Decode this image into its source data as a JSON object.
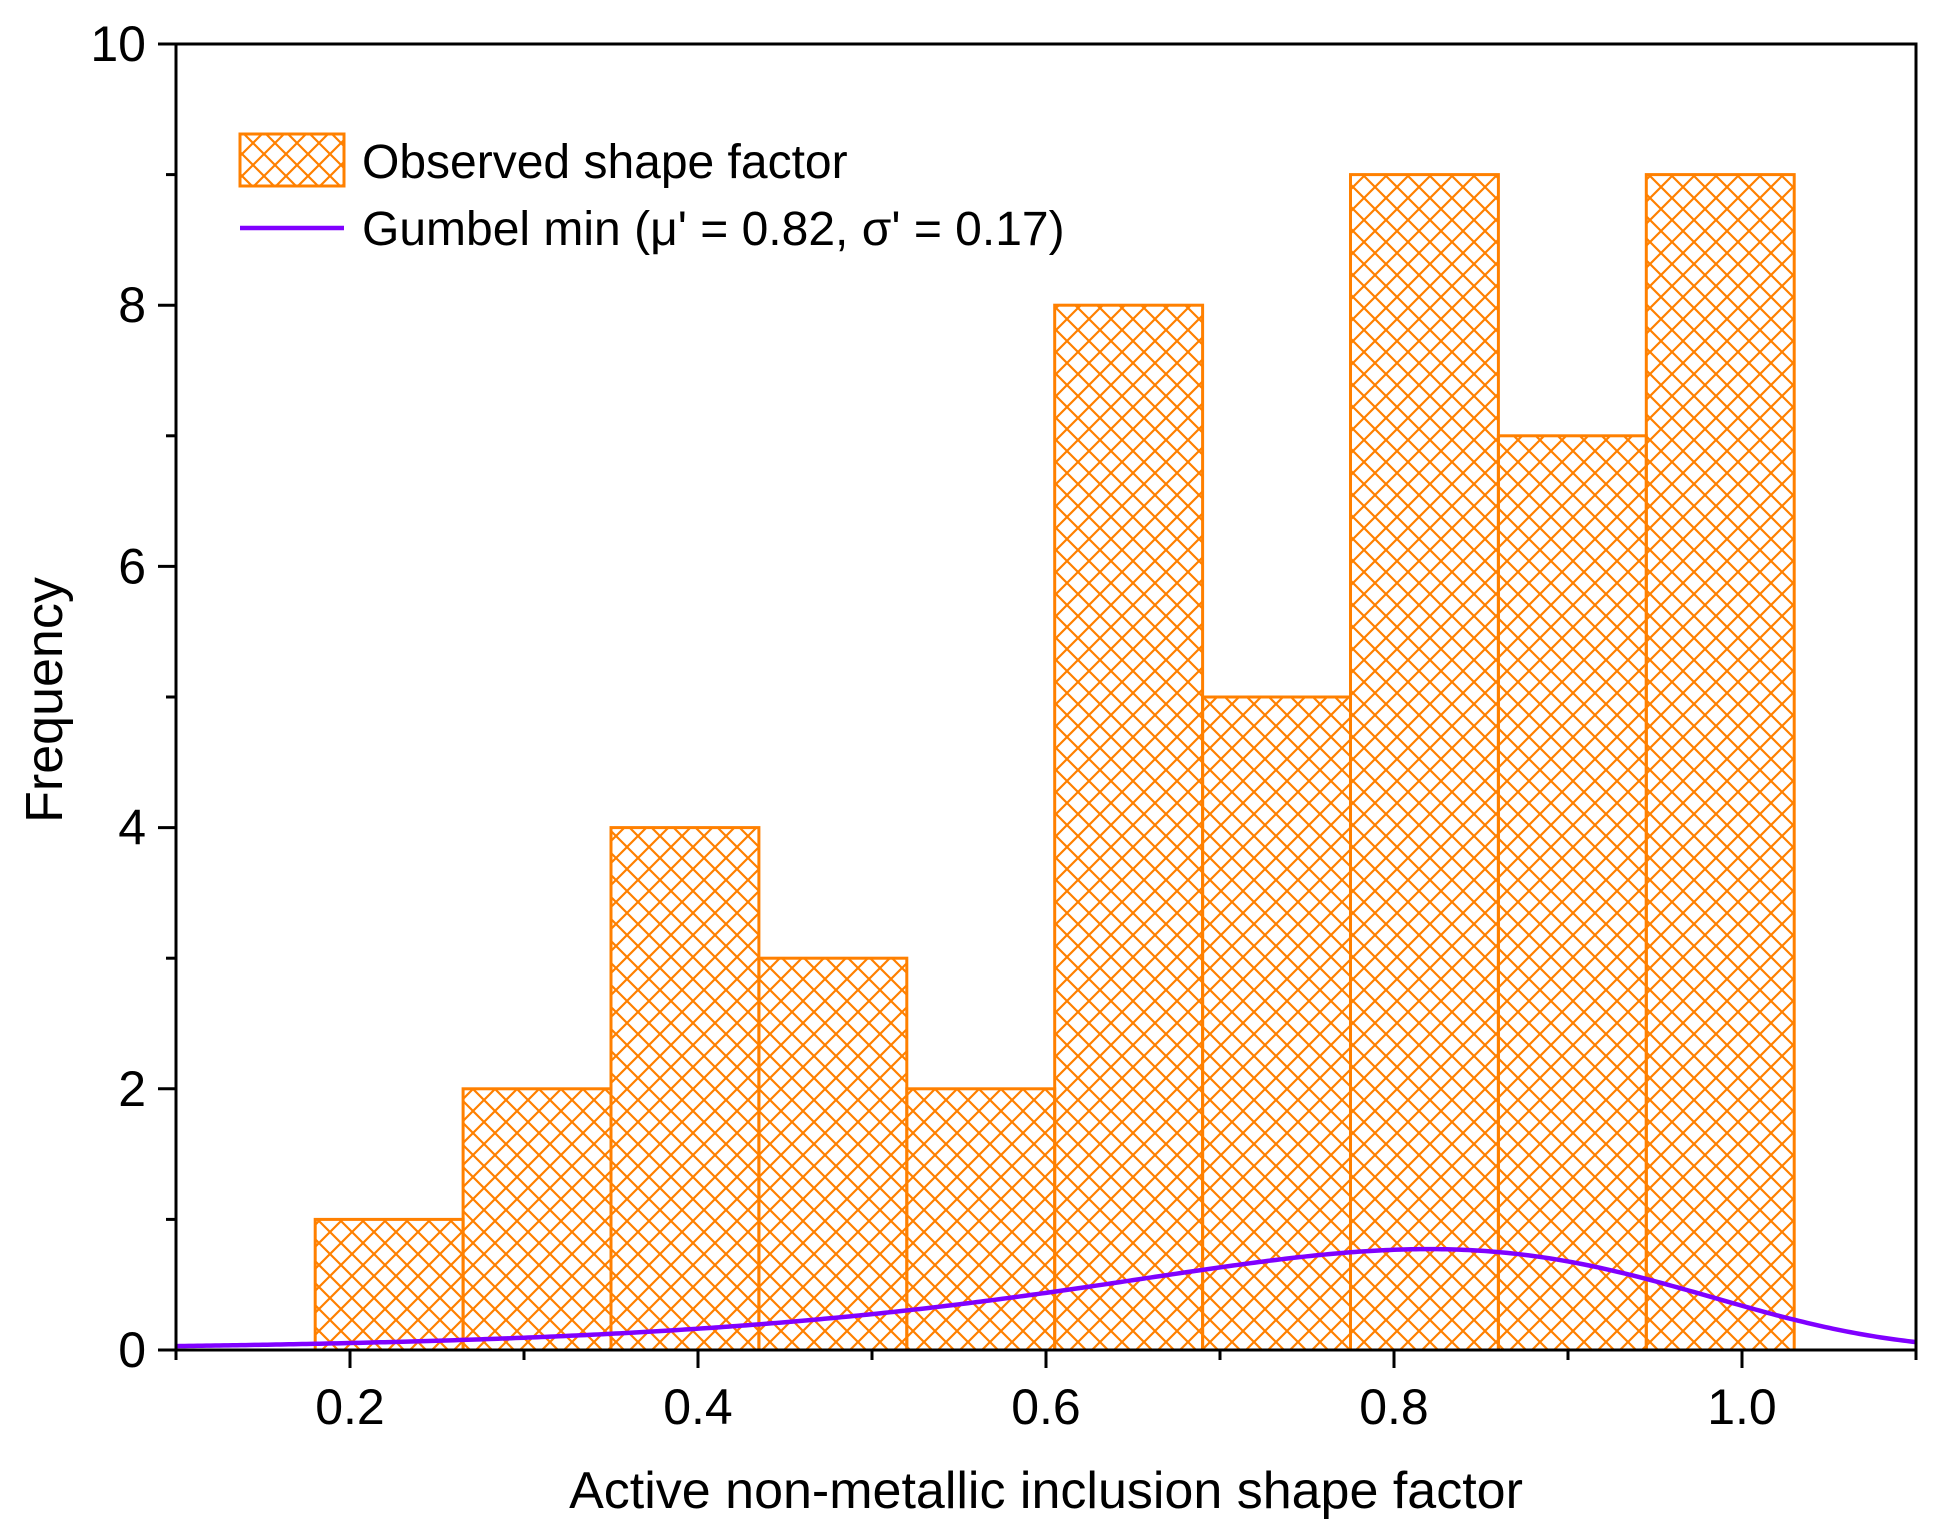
{
  "chart_data": {
    "type": "bar",
    "title": "",
    "xlabel": "Active non-metallic inclusion shape factor",
    "ylabel": "Frequency",
    "xlim": [
      0.1,
      1.1
    ],
    "ylim": [
      0,
      10
    ],
    "x_ticks": [
      "0.2",
      "0.4",
      "0.6",
      "0.8",
      "1.0"
    ],
    "y_ticks": [
      "0",
      "2",
      "4",
      "6",
      "8",
      "10"
    ],
    "bins": [
      {
        "start": 0.18,
        "end": 0.265,
        "value": 1
      },
      {
        "start": 0.265,
        "end": 0.35,
        "value": 2
      },
      {
        "start": 0.35,
        "end": 0.435,
        "value": 4
      },
      {
        "start": 0.435,
        "end": 0.52,
        "value": 3
      },
      {
        "start": 0.52,
        "end": 0.605,
        "value": 2
      },
      {
        "start": 0.605,
        "end": 0.69,
        "value": 8
      },
      {
        "start": 0.69,
        "end": 0.775,
        "value": 5
      },
      {
        "start": 0.775,
        "end": 0.86,
        "value": 9
      },
      {
        "start": 0.86,
        "end": 0.945,
        "value": 7
      },
      {
        "start": 0.945,
        "end": 1.03,
        "value": 9
      }
    ],
    "curve": {
      "name": "Gumbel min (μ' = 0.82, σ' = 0.17)",
      "type": "gumbel_min",
      "mu": 0.82,
      "sigma": 0.17,
      "scale": 4.2,
      "x_range": [
        0.1,
        1.1
      ]
    },
    "legend": {
      "position": "top-left",
      "entries": [
        "Observed shape factor",
        "Gumbel min (μ' = 0.82, σ' = 0.17)"
      ]
    },
    "colors": {
      "bar": "#ff8000",
      "curve": "#8000ff",
      "axis": "#000000"
    }
  }
}
